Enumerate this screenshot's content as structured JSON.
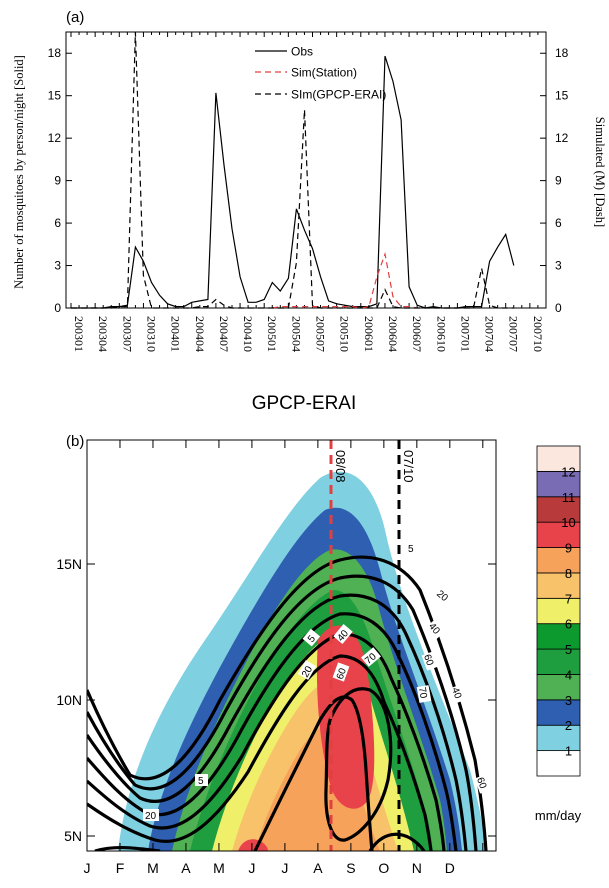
{
  "panel_a": {
    "panel_label": "(a)",
    "y_left_label": "Number of mosquitoes by person/night [Solid]",
    "y_right_label": "Simulated (M) [Dash]",
    "legend": [
      {
        "name": "Obs",
        "color": "#000000",
        "style": "solid"
      },
      {
        "name": "Sim(Station)",
        "color": "#e04040",
        "style": "dashed"
      },
      {
        "name": "SIm(GPCP-ERAI)",
        "color": "#000000",
        "style": "dashed"
      }
    ]
  },
  "panel_b": {
    "title": "GPCP-ERAI",
    "panel_label": "(b)",
    "colorbar_unit": "mm/day",
    "colorbar_levels": [
      "1",
      "2",
      "3",
      "4",
      "5",
      "6",
      "7",
      "8",
      "9",
      "10",
      "11",
      "12"
    ],
    "colorbar_colors": [
      "#ffffff",
      "#7fd0e0",
      "#2e5fb0",
      "#4fb054",
      "#1e9e3e",
      "#0c9a2f",
      "#f0ef6a",
      "#f8c26a",
      "#f7a25a",
      "#e8424a",
      "#b83a3a",
      "#7a6bb5",
      "#fbe7de"
    ],
    "vline_labels": [
      "08/08",
      "07/10"
    ],
    "contour_labels": [
      "5",
      "20",
      "40",
      "60",
      "70"
    ]
  },
  "chart_data": [
    {
      "type": "line",
      "x_labels": [
        "200301",
        "200304",
        "200307",
        "200310",
        "200401",
        "200404",
        "200407",
        "200410",
        "200501",
        "200504",
        "200507",
        "200510",
        "200601",
        "200604",
        "200607",
        "200610",
        "200701",
        "200704",
        "200707",
        "200710"
      ],
      "ylim_left": [
        0,
        19.5
      ],
      "ylim_right": [
        0,
        19.5
      ],
      "yticks": [
        0,
        3,
        6,
        9,
        12,
        15,
        18
      ],
      "series": [
        {
          "name": "Obs",
          "x_index": [
            0,
            1,
            2,
            3,
            4,
            5,
            6,
            7,
            8,
            9,
            10,
            11,
            12,
            13,
            14,
            15,
            16,
            17,
            18,
            19,
            20,
            21,
            22,
            23,
            24,
            25,
            26,
            27,
            28,
            29,
            30,
            31,
            32,
            33,
            34,
            35,
            36,
            37,
            38,
            39,
            40,
            41,
            42,
            43,
            44,
            45,
            46,
            47,
            48,
            49,
            50,
            51,
            52,
            53,
            54,
            55,
            56,
            57,
            58
          ],
          "values": [
            0,
            0,
            0,
            0,
            0,
            0.1,
            0.1,
            0.2,
            4.3,
            3.3,
            1.8,
            0.9,
            0.3,
            0.1,
            0.1,
            0.4,
            0.5,
            0.6,
            15.2,
            10.1,
            5.6,
            2.2,
            0.4,
            0.4,
            0.6,
            1.8,
            1.2,
            2.1,
            7.0,
            5.5,
            4.2,
            2.2,
            0.5,
            0.3,
            0.2,
            0.1,
            0.1,
            0.1,
            0.3,
            17.8,
            16.0,
            13.3,
            1.5,
            0.2,
            0,
            0.1,
            0,
            0,
            0,
            0.1,
            0.1,
            0.1,
            3.3,
            4.3,
            5.2,
            3.0,
            null,
            null,
            null
          ]
        },
        {
          "name": "Sim(Station)",
          "x_index": [
            25,
            26,
            27,
            28,
            29,
            30,
            31,
            32,
            33,
            34,
            35,
            36,
            37,
            38,
            39,
            40,
            41,
            42,
            43
          ],
          "values": [
            0,
            0.1,
            0.1,
            0.1,
            0.1,
            0.1,
            0.1,
            0.1,
            0.1,
            0.1,
            0.1,
            0,
            0.1,
            2.2,
            3.8,
            0.8,
            0.1,
            0.1,
            0
          ]
        },
        {
          "name": "SIm(GPCP-ERAI)",
          "x_index": [
            0,
            1,
            2,
            3,
            4,
            5,
            6,
            7,
            8,
            9,
            10,
            11,
            12,
            13,
            14,
            15,
            16,
            17,
            18,
            19,
            20,
            21,
            22,
            23,
            24,
            25,
            26,
            27,
            28,
            29,
            30,
            31,
            32,
            33,
            34,
            35,
            36,
            37,
            38,
            39,
            40,
            41,
            42,
            43,
            44,
            45,
            46,
            47,
            48,
            49,
            50,
            51,
            52,
            53,
            54,
            55
          ],
          "values": [
            0,
            0,
            0,
            0,
            0,
            0,
            0.1,
            0.1,
            19.5,
            2.3,
            0,
            0,
            0,
            0,
            0,
            0,
            0.1,
            0.1,
            0.6,
            0.2,
            0,
            0,
            0,
            0,
            0,
            0,
            0,
            0,
            3.2,
            14.0,
            0.2,
            0,
            0,
            0,
            0,
            0,
            0,
            0,
            0,
            1.3,
            0.1,
            0,
            0,
            0,
            0,
            0,
            0,
            0,
            0,
            0,
            0,
            2.8,
            0.2,
            0,
            0,
            0
          ]
        }
      ]
    },
    {
      "type": "heatmap",
      "title": "GPCP-ERAI",
      "x_ticks": [
        "J",
        "F",
        "M",
        "A",
        "M",
        "J",
        "J",
        "A",
        "S",
        "O",
        "N",
        "D"
      ],
      "y_ticks": [
        "5N",
        "10N",
        "15N"
      ],
      "colorbar_unit": "mm/day",
      "contour_levels": [
        5,
        20,
        40,
        60,
        70
      ],
      "vertical_markers": [
        "08/08",
        "07/10"
      ]
    }
  ]
}
